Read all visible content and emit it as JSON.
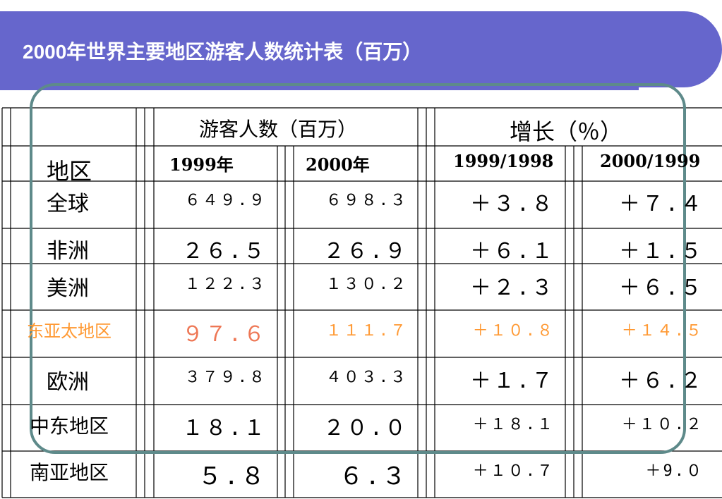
{
  "title": "2000年世界主要地区游客人数统计表（百万）",
  "headers": {
    "visitors": "游客人数（百万）",
    "growth": "增长（％）",
    "region": "地区",
    "y1999": "1999年",
    "y2000": "2000年",
    "g1": "1999/1998",
    "g2": "2000/1999"
  },
  "rows": [
    {
      "region": "全球",
      "v1999": "６４９.９",
      "v2000": "６９８.３",
      "g1": "＋３.８",
      "g2": "＋７.４"
    },
    {
      "region": "非洲",
      "v1999": "２６.５",
      "v2000": "２６.９",
      "g1": "＋６.１",
      "g2": "＋１.５"
    },
    {
      "region": "美洲",
      "v1999": "１２２.３",
      "v2000": "１３０.２",
      "g1": "＋２.３",
      "g2": "＋６.５"
    },
    {
      "region": "东亚太地区",
      "v1999": "９７.６",
      "v2000": "１１１.７",
      "g1": "＋１０.８",
      "g2": "＋１４.５"
    },
    {
      "region": "欧洲",
      "v1999": "３７９.８",
      "v2000": "４０３.３",
      "g1": "＋１.７",
      "g2": "＋６.２"
    },
    {
      "region": "中东地区",
      "v1999": "１８.１",
      "v2000": "２０.０",
      "g1": "＋１８.１",
      "g2": "＋１０.２"
    },
    {
      "region": "南亚地区",
      "v1999": "５.８",
      "v2000": "６.３",
      "g1": "＋１０.７",
      "g2": "＋9.０"
    }
  ],
  "colors": {
    "banner": "#6666cc",
    "highlight": "#ff9933",
    "frame": "#5e8a8a"
  }
}
